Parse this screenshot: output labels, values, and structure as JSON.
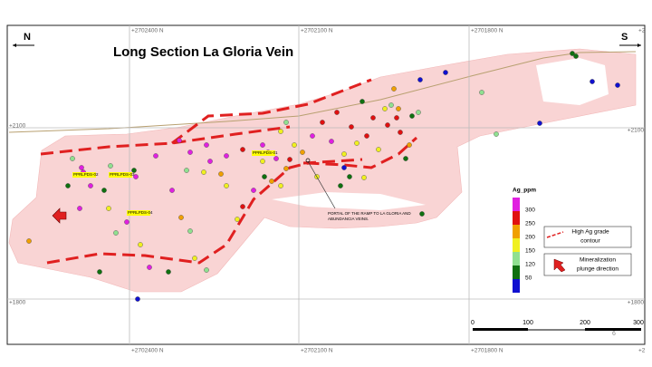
{
  "map": {
    "title": "Long Section La Gloria Vein",
    "north": "N",
    "south": "S",
    "grid_top": [
      "+2702400 N",
      "+2702100 N",
      "+2701800 N",
      "+2"
    ],
    "grid_bottom": [
      "+2702400 N",
      "+2702100 N",
      "+2701800 N",
      "+2"
    ],
    "elev_left": [
      "+2100",
      "+1800"
    ],
    "elev_right": [
      "+2100",
      "+1800"
    ],
    "holes": [
      "PPRLPDS-02",
      "PPRLPDS-03",
      "PPRLPDS-04",
      "PPRLPDS-01"
    ],
    "portal_note": [
      "PORTAL OF THE RAMP TO LA GLORIA AND",
      "ABUNDANCIA VEINS."
    ],
    "legend": {
      "title": "Ag_ppm",
      "values": [
        300,
        250,
        200,
        150,
        120,
        50
      ],
      "colors": [
        "#e020e0",
        "#e01010",
        "#f0a000",
        "#f0f020",
        "#90e090",
        "#107010",
        "#1010d0"
      ]
    },
    "contour_label": [
      "High Ag grade",
      "contour"
    ],
    "plunge_label": [
      "Mineralization",
      "plunge direction"
    ],
    "scale": [
      0,
      100,
      200,
      300
    ],
    "page_number": "6"
  }
}
